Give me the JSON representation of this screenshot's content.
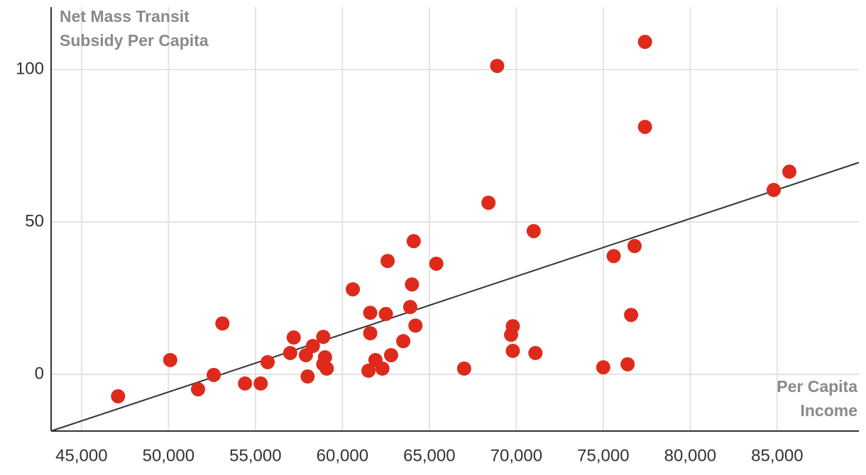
{
  "chart_data": {
    "type": "scatter",
    "y_label": "Net Mass Transit Subsidy Per Capita",
    "x_label": "Per Capita Income",
    "color": "#de2a1b",
    "grid": true,
    "xlim": [
      43250,
      89700
    ],
    "ylim": [
      -18.6,
      120.5
    ],
    "xticks": [
      {
        "value": 45000,
        "label": "45,000"
      },
      {
        "value": 50000,
        "label": "50,000"
      },
      {
        "value": 55000,
        "label": "55,000"
      },
      {
        "value": 60000,
        "label": "60,000"
      },
      {
        "value": 65000,
        "label": "65,000"
      },
      {
        "value": 70000,
        "label": "70,000"
      },
      {
        "value": 75000,
        "label": "75,000"
      },
      {
        "value": 80000,
        "label": "80,000"
      },
      {
        "value": 85000,
        "label": "85,000"
      }
    ],
    "yticks": [
      0,
      50,
      100
    ],
    "x": [
      47100,
      50100,
      51700,
      52600,
      53100,
      54400,
      55300,
      55700,
      57000,
      57200,
      57900,
      58000,
      58300,
      58900,
      58900,
      59000,
      59100,
      60600,
      61500,
      61600,
      61600,
      61900,
      62300,
      62500,
      62600,
      62800,
      63500,
      63900,
      64000,
      64100,
      64200,
      65400,
      67000,
      68400,
      68900,
      69700,
      69800,
      69800,
      71000,
      71100,
      75000,
      75600,
      76400,
      76600,
      76800,
      77400,
      77400,
      84800,
      85700
    ],
    "values": [
      -7.2,
      4.7,
      -4.9,
      -0.2,
      16.7,
      -3.0,
      -3.0,
      4.0,
      7.0,
      12.1,
      6.3,
      -0.7,
      9.3,
      12.3,
      3.3,
      5.6,
      1.9,
      27.9,
      1.2,
      20.2,
      13.5,
      4.7,
      1.9,
      19.8,
      37.2,
      6.3,
      10.9,
      22.1,
      29.5,
      43.7,
      16.0,
      36.3,
      1.9,
      56.3,
      101.2,
      13.0,
      7.7,
      15.8,
      47.0,
      7.0,
      2.3,
      38.8,
      3.3,
      19.5,
      42.1,
      109.1,
      81.2,
      60.5,
      66.5
    ],
    "trendline": {
      "x": [
        43250,
        89700
      ],
      "y": [
        -18.6,
        69.5
      ],
      "color": "#333333"
    }
  }
}
